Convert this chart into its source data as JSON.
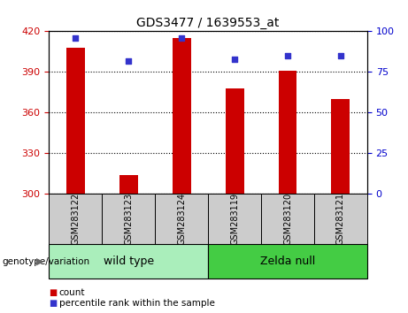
{
  "title": "GDS3477 / 1639553_at",
  "categories": [
    "GSM283122",
    "GSM283123",
    "GSM283124",
    "GSM283119",
    "GSM283120",
    "GSM283121"
  ],
  "counts": [
    408,
    314,
    415,
    378,
    391,
    370
  ],
  "percentile_ranks": [
    96,
    82,
    96,
    83,
    85,
    85
  ],
  "ymin": 300,
  "ymax": 420,
  "y_ticks": [
    300,
    330,
    360,
    390,
    420
  ],
  "y2min": 0,
  "y2max": 100,
  "y2_ticks": [
    0,
    25,
    50,
    75,
    100
  ],
  "bar_color": "#cc0000",
  "dot_color": "#3333cc",
  "wild_type_label": "wild type",
  "zelda_null_label": "Zelda null",
  "group_label": "genotype/variation",
  "wt_color": "#aaeebb",
  "zn_color": "#44cc44",
  "legend_count": "count",
  "legend_pct": "percentile rank within the sample",
  "tick_label_color_left": "#cc0000",
  "tick_label_color_right": "#0000cc",
  "xlabel_area_bg": "#cccccc",
  "bar_width": 0.35,
  "n_wild": 3,
  "n_zelda": 3
}
